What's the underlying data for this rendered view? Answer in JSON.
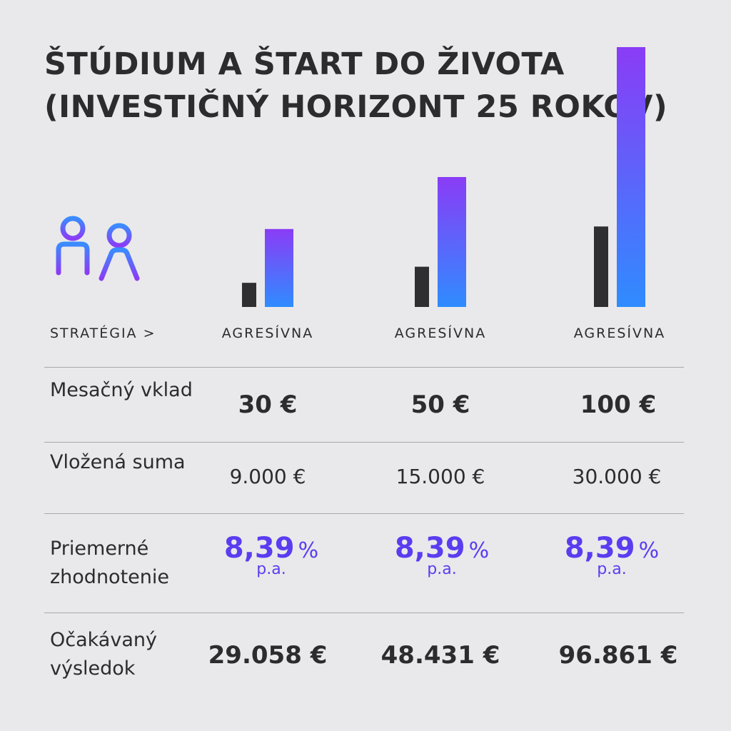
{
  "title": {
    "line1": "ŠTÚDIUM A ŠTART DO ŽIVOTA",
    "line2": "(INVESTIČNÝ HORIZONT 25 ROKOV)"
  },
  "icons": {
    "children": "children-icon"
  },
  "colors": {
    "dark_bar": "#2f2f31",
    "gradient_top": "#8a3cf6",
    "gradient_bottom": "#2f8cff",
    "accent": "#5a3df0"
  },
  "strategy_label": "STRATÉGIA >",
  "columns": [
    {
      "strategy": "AGRESÍVNA",
      "monthly": "30 €",
      "invested": "9.000 €",
      "rate": "8,39",
      "rate_unit": "%",
      "rate_period": "p.a.",
      "result": "29.058 €"
    },
    {
      "strategy": "AGRESÍVNA",
      "monthly": "50 €",
      "invested": "15.000 €",
      "rate": "8,39",
      "rate_unit": "%",
      "rate_period": "p.a.",
      "result": "48.431 €"
    },
    {
      "strategy": "AGRESÍVNA",
      "monthly": "100 €",
      "invested": "30.000 €",
      "rate": "8,39",
      "rate_unit": "%",
      "rate_period": "p.a.",
      "result": "96.861 €"
    }
  ],
  "rows": {
    "monthly": "Mesačný vklad",
    "invested": "Vložená suma",
    "rate": "Priemerné zhodnotenie",
    "result": "Očakávaný výsledok"
  },
  "chart_data": {
    "type": "bar",
    "categories": [
      "30 €",
      "50 €",
      "100 €"
    ],
    "series": [
      {
        "values": [
          9000,
          15000,
          30000
        ]
      },
      {
        "values": [
          29058,
          48431,
          96861
        ]
      }
    ],
    "title": "ŠTÚDIUM A ŠTART DO ŽIVOTA (INVESTIČNÝ HORIZONT 25 ROKOV)",
    "ylim": [
      0,
      96861
    ]
  }
}
